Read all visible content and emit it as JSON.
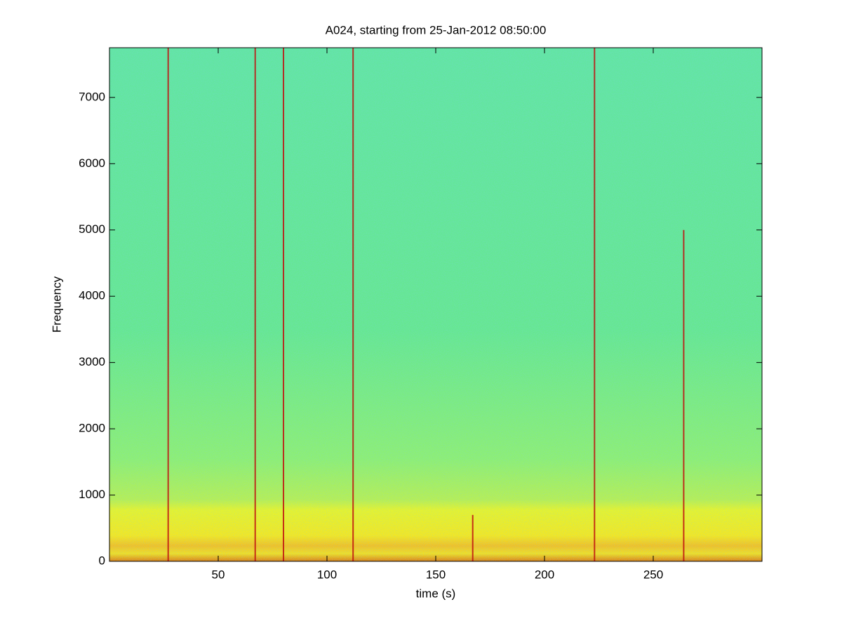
{
  "chart_data": {
    "type": "spectrogram",
    "title": "A024, starting from 25-Jan-2012 08:50:00",
    "x_label": "time (s)",
    "y_label": "Frequency",
    "x": [
      27,
      67,
      80,
      112,
      167,
      223,
      264
    ],
    "values": [
      7750,
      7750,
      7750,
      7750,
      700,
      7750,
      5000
    ],
    "color": "#c01010",
    "xlim": [
      0,
      300
    ],
    "ylim": [
      0,
      7750
    ],
    "xticks": [
      50,
      100,
      150,
      200,
      250
    ],
    "yticks": [
      0,
      1000,
      2000,
      3000,
      4000,
      5000,
      6000,
      7000
    ]
  }
}
